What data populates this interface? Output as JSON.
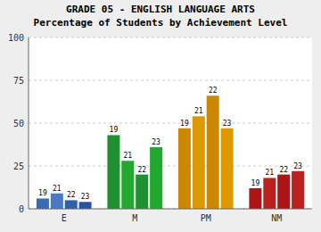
{
  "chart_data": {
    "type": "bar",
    "title": "GRADE 05 - ENGLISH LANGUAGE ARTS",
    "subtitle": "Percentage of Students by Achievement Level",
    "categories": [
      "E",
      "M",
      "PM",
      "NM"
    ],
    "series": [
      {
        "name": "19",
        "colors": [
          "#3a6ab0",
          "#1e9030",
          "#cc8800",
          "#aa1515"
        ],
        "values": [
          6,
          43,
          47,
          12
        ]
      },
      {
        "name": "21",
        "colors": [
          "#4a7ac4",
          "#22a830",
          "#dd9900",
          "#bb2020"
        ],
        "values": [
          9,
          28,
          54,
          18
        ]
      },
      {
        "name": "22",
        "colors": [
          "#3060a8",
          "#1e9030",
          "#cc8800",
          "#aa1515"
        ],
        "values": [
          5,
          20,
          66,
          20
        ]
      },
      {
        "name": "23",
        "colors": [
          "#2a50a0",
          "#22a830",
          "#dd9900",
          "#bb2020"
        ],
        "values": [
          4,
          36,
          47,
          22
        ]
      }
    ],
    "ylim": [
      0,
      100
    ],
    "yticks": [
      0,
      25,
      50,
      75,
      100
    ],
    "grid": true
  }
}
